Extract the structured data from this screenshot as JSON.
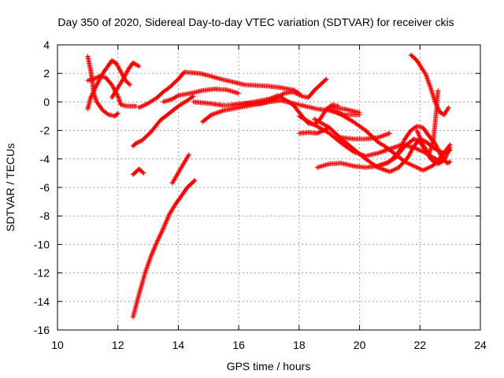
{
  "chart_data": {
    "type": "scatter",
    "title": "Day 350 of 2020, Sidereal Day-to-day VTEC variation (SDTVAR) for receiver ckis",
    "xlabel": "GPS time / hours",
    "ylabel": "SDTVAR / TECUs",
    "xlim": [
      10,
      24
    ],
    "ylim": [
      -16,
      4
    ],
    "xticks": [
      "10",
      "12",
      "14",
      "16",
      "18",
      "20",
      "22",
      "24"
    ],
    "yticks": [
      "4",
      "2",
      "0",
      "-2",
      "-4",
      "-6",
      "-8",
      "-10",
      "-12",
      "-14",
      "-16"
    ],
    "grid": true,
    "marker": "+",
    "color": "#ff0000",
    "tracks": [
      [
        [
          11.0,
          3.2
        ],
        [
          11.1,
          2.2
        ],
        [
          11.15,
          1.5
        ],
        [
          11.2,
          0.6
        ],
        [
          11.3,
          0.0
        ],
        [
          11.5,
          -0.6
        ],
        [
          11.7,
          -0.9
        ],
        [
          11.9,
          -1.0
        ],
        [
          12.0,
          -0.8
        ]
      ],
      [
        [
          11.0,
          1.5
        ],
        [
          11.2,
          1.6
        ],
        [
          11.4,
          1.8
        ],
        [
          11.6,
          1.7
        ],
        [
          11.8,
          1.2
        ],
        [
          12.0,
          0.4
        ],
        [
          12.1,
          -0.2
        ],
        [
          12.3,
          -0.3
        ],
        [
          12.6,
          -0.3
        ]
      ],
      [
        [
          11.0,
          -0.5
        ],
        [
          11.1,
          0.3
        ],
        [
          11.3,
          1.2
        ],
        [
          11.5,
          2.0
        ],
        [
          11.7,
          2.6
        ],
        [
          11.8,
          2.9
        ],
        [
          11.95,
          2.7
        ],
        [
          12.1,
          2.1
        ],
        [
          12.25,
          1.5
        ],
        [
          12.4,
          1.2
        ]
      ],
      [
        [
          11.8,
          0.3
        ],
        [
          12.0,
          1.0
        ],
        [
          12.2,
          1.7
        ],
        [
          12.35,
          2.3
        ],
        [
          12.5,
          2.75
        ],
        [
          12.7,
          2.5
        ]
      ],
      [
        [
          12.5,
          -3.1
        ],
        [
          12.6,
          -2.9
        ],
        [
          12.8,
          -2.7
        ],
        [
          13.1,
          -2.1
        ],
        [
          13.4,
          -1.3
        ],
        [
          13.7,
          -0.8
        ],
        [
          14.0,
          -0.3
        ],
        [
          14.3,
          0.1
        ],
        [
          14.5,
          0.4
        ]
      ],
      [
        [
          12.7,
          -0.4
        ],
        [
          13.0,
          -0.1
        ],
        [
          13.3,
          0.3
        ],
        [
          13.5,
          0.7
        ],
        [
          13.7,
          1.0
        ],
        [
          14.0,
          1.6
        ],
        [
          14.2,
          2.1
        ],
        [
          14.4,
          2.05
        ],
        [
          14.7,
          2.0
        ],
        [
          15.0,
          1.85
        ],
        [
          15.4,
          1.6
        ],
        [
          15.8,
          1.4
        ],
        [
          16.2,
          1.2
        ],
        [
          16.6,
          1.15
        ],
        [
          17.0,
          1.1
        ],
        [
          17.4,
          1.0
        ],
        [
          17.8,
          0.85
        ],
        [
          18.0,
          0.6
        ]
      ],
      [
        [
          13.5,
          0.0
        ],
        [
          13.8,
          0.2
        ],
        [
          14.0,
          0.45
        ],
        [
          14.4,
          0.6
        ],
        [
          14.8,
          0.8
        ],
        [
          15.2,
          0.9
        ],
        [
          15.6,
          0.85
        ],
        [
          16.0,
          0.6
        ]
      ],
      [
        [
          12.5,
          -5.1
        ],
        [
          12.7,
          -4.7
        ],
        [
          12.85,
          -5.0
        ]
      ],
      [
        [
          13.8,
          -5.7
        ],
        [
          14.1,
          -4.6
        ],
        [
          14.35,
          -3.7
        ]
      ],
      [
        [
          12.5,
          -15.1
        ],
        [
          12.7,
          -13.5
        ],
        [
          12.9,
          -12.0
        ],
        [
          13.1,
          -10.8
        ],
        [
          13.3,
          -9.8
        ],
        [
          13.5,
          -8.9
        ],
        [
          13.7,
          -7.9
        ],
        [
          13.9,
          -7.2
        ],
        [
          14.1,
          -6.6
        ],
        [
          14.3,
          -6.0
        ],
        [
          14.55,
          -5.5
        ]
      ],
      [
        [
          14.8,
          -1.4
        ],
        [
          15.1,
          -0.9
        ],
        [
          15.5,
          -0.6
        ],
        [
          16.0,
          -0.4
        ],
        [
          16.5,
          -0.2
        ],
        [
          17.0,
          0.0
        ],
        [
          17.4,
          0.1
        ],
        [
          17.8,
          -0.1
        ],
        [
          18.2,
          -0.3
        ],
        [
          18.6,
          -0.5
        ],
        [
          19.0,
          -0.6
        ],
        [
          19.5,
          -0.9
        ],
        [
          20.0,
          -0.9
        ]
      ],
      [
        [
          14.5,
          0.0
        ],
        [
          15.0,
          -0.1
        ],
        [
          15.5,
          -0.25
        ],
        [
          16.0,
          -0.2
        ],
        [
          16.5,
          0.0
        ],
        [
          17.0,
          0.2
        ],
        [
          17.3,
          0.45
        ],
        [
          17.5,
          0.2
        ],
        [
          17.8,
          -0.2
        ],
        [
          18.1,
          -1.0
        ],
        [
          18.3,
          -1.5
        ],
        [
          18.5,
          -1.6
        ],
        [
          18.7,
          -1.2
        ],
        [
          18.9,
          -0.5
        ],
        [
          19.1,
          -0.2
        ],
        [
          19.3,
          -0.3
        ]
      ],
      [
        [
          15.8,
          -0.2
        ],
        [
          16.2,
          -0.1
        ],
        [
          16.7,
          -0.15
        ],
        [
          17.2,
          0.2
        ],
        [
          17.5,
          0.6
        ],
        [
          17.8,
          0.7
        ],
        [
          18.1,
          0.4
        ],
        [
          18.3,
          0.3
        ],
        [
          18.5,
          0.8
        ],
        [
          18.7,
          1.2
        ],
        [
          18.9,
          1.6
        ]
      ],
      [
        [
          18.0,
          -2.2
        ],
        [
          18.3,
          -2.15
        ],
        [
          18.6,
          -2.2
        ],
        [
          18.8,
          -2.0
        ],
        [
          19.0,
          -1.8
        ]
      ],
      [
        [
          18.0,
          -1.0
        ],
        [
          18.5,
          -1.6
        ],
        [
          19.0,
          -2.2
        ],
        [
          19.4,
          -2.9
        ],
        [
          19.8,
          -3.5
        ],
        [
          20.2,
          -3.8
        ],
        [
          20.6,
          -3.6
        ],
        [
          21.0,
          -3.3
        ],
        [
          21.4,
          -3.0
        ],
        [
          21.8,
          -3.2
        ],
        [
          22.2,
          -3.6
        ],
        [
          22.6,
          -4.1
        ],
        [
          23.0,
          -3.0
        ]
      ],
      [
        [
          18.5,
          -1.2
        ],
        [
          19.0,
          -1.8
        ],
        [
          19.4,
          -2.6
        ],
        [
          19.8,
          -3.3
        ],
        [
          20.2,
          -4.0
        ],
        [
          20.6,
          -4.6
        ],
        [
          21.0,
          -4.9
        ],
        [
          21.3,
          -4.6
        ],
        [
          21.6,
          -3.9
        ],
        [
          21.8,
          -3.1
        ],
        [
          22.0,
          -2.6
        ],
        [
          22.2,
          -2.8
        ],
        [
          22.5,
          -3.3
        ],
        [
          22.8,
          -3.6
        ],
        [
          23.0,
          -3.4
        ]
      ],
      [
        [
          18.6,
          -4.6
        ],
        [
          19.0,
          -4.35
        ],
        [
          19.4,
          -4.3
        ],
        [
          19.8,
          -4.5
        ],
        [
          20.2,
          -4.6
        ],
        [
          20.6,
          -4.5
        ],
        [
          21.0,
          -4.2
        ],
        [
          21.3,
          -3.5
        ],
        [
          21.5,
          -2.6
        ],
        [
          21.7,
          -2.0
        ],
        [
          21.9,
          -1.7
        ],
        [
          22.1,
          -1.8
        ],
        [
          22.3,
          -2.4
        ],
        [
          22.5,
          -2.9
        ],
        [
          22.7,
          -3.8
        ],
        [
          22.9,
          -4.3
        ],
        [
          23.0,
          -4.2
        ]
      ],
      [
        [
          19.0,
          -0.5
        ],
        [
          19.4,
          -0.9
        ],
        [
          19.8,
          -1.4
        ],
        [
          20.2,
          -2.0
        ],
        [
          20.6,
          -2.8
        ],
        [
          20.9,
          -3.2
        ],
        [
          21.2,
          -3.7
        ],
        [
          21.5,
          -4.2
        ],
        [
          21.8,
          -4.5
        ],
        [
          22.1,
          -4.8
        ],
        [
          22.4,
          -4.5
        ],
        [
          22.7,
          -4.0
        ]
      ],
      [
        [
          19.0,
          -0.4
        ],
        [
          19.5,
          -0.5
        ],
        [
          20.0,
          -0.75
        ]
      ],
      [
        [
          21.7,
          3.3
        ],
        [
          21.9,
          2.9
        ],
        [
          22.05,
          2.4
        ],
        [
          22.2,
          1.9
        ],
        [
          22.35,
          1.0
        ],
        [
          22.5,
          0.0
        ],
        [
          22.65,
          -0.7
        ],
        [
          22.8,
          -0.9
        ],
        [
          22.95,
          -0.4
        ]
      ],
      [
        [
          21.9,
          -2.0
        ],
        [
          22.1,
          -3.0
        ],
        [
          22.3,
          -3.7
        ],
        [
          22.45,
          -2.6
        ],
        [
          22.55,
          -0.5
        ],
        [
          22.6,
          0.8
        ]
      ],
      [
        [
          20.6,
          -4.5
        ],
        [
          20.9,
          -4.3
        ],
        [
          21.2,
          -3.9
        ],
        [
          21.5,
          -3.1
        ],
        [
          21.8,
          -2.6
        ],
        [
          22.0,
          -2.8
        ],
        [
          22.2,
          -3.5
        ],
        [
          22.4,
          -4.1
        ],
        [
          22.6,
          -4.35
        ],
        [
          22.8,
          -4.1
        ],
        [
          23.0,
          -3.2
        ]
      ],
      [
        [
          19.4,
          -2.5
        ],
        [
          19.8,
          -2.6
        ],
        [
          20.2,
          -2.6
        ],
        [
          20.6,
          -2.5
        ],
        [
          21.0,
          -2.2
        ]
      ]
    ]
  }
}
